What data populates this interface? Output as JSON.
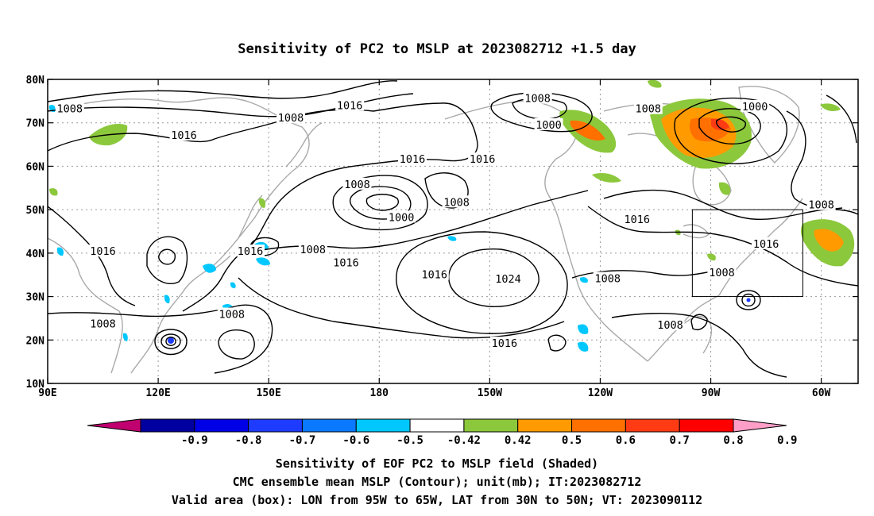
{
  "title": "Sensitivity of PC2 to MSLP at 2023082712 +1.5 day",
  "lon_ticks": [
    {
      "lon": 90,
      "label": "90E"
    },
    {
      "lon": 120,
      "label": "120E"
    },
    {
      "lon": 150,
      "label": "150E"
    },
    {
      "lon": 180,
      "label": "180"
    },
    {
      "lon": 210,
      "label": "150W"
    },
    {
      "lon": 240,
      "label": "120W"
    },
    {
      "lon": 270,
      "label": "90W"
    },
    {
      "lon": 300,
      "label": "60W"
    }
  ],
  "lat_ticks": [
    {
      "lat": 80,
      "label": "80N"
    },
    {
      "lat": 70,
      "label": "70N"
    },
    {
      "lat": 60,
      "label": "60N"
    },
    {
      "lat": 50,
      "label": "50N"
    },
    {
      "lat": 40,
      "label": "40N"
    },
    {
      "lat": 30,
      "label": "30N"
    },
    {
      "lat": 20,
      "label": "20N"
    },
    {
      "lat": 10,
      "label": "10N"
    }
  ],
  "map_extent": {
    "lon": [
      90,
      310
    ],
    "lat": [
      10,
      80
    ]
  },
  "valid_box": {
    "lon": [
      265,
      295
    ],
    "lat": [
      30,
      50
    ]
  },
  "contour_labels": [
    {
      "text": "1008",
      "lon": 96,
      "lat": 73.3
    },
    {
      "text": "1008",
      "lon": 156,
      "lat": 71.2
    },
    {
      "text": "1016",
      "lon": 127,
      "lat": 67.2
    },
    {
      "text": "1016",
      "lon": 172,
      "lat": 74.1
    },
    {
      "text": "1016",
      "lon": 189,
      "lat": 61.7
    },
    {
      "text": "1016",
      "lon": 208,
      "lat": 61.7
    },
    {
      "text": "1008",
      "lon": 223,
      "lat": 75.7
    },
    {
      "text": "1000",
      "lon": 226,
      "lat": 69.6
    },
    {
      "text": "1008",
      "lon": 253,
      "lat": 73.3
    },
    {
      "text": "1000",
      "lon": 282,
      "lat": 73.8
    },
    {
      "text": "1008",
      "lon": 174,
      "lat": 55.9
    },
    {
      "text": "1008",
      "lon": 201,
      "lat": 51.8
    },
    {
      "text": "1000",
      "lon": 186,
      "lat": 48.3
    },
    {
      "text": "1016",
      "lon": 105,
      "lat": 40.5
    },
    {
      "text": "1016",
      "lon": 145,
      "lat": 40.5
    },
    {
      "text": "1008",
      "lon": 162,
      "lat": 40.9
    },
    {
      "text": "1016",
      "lon": 171,
      "lat": 37.9
    },
    {
      "text": "1016",
      "lon": 250,
      "lat": 47.8
    },
    {
      "text": "1016",
      "lon": 285,
      "lat": 42.2
    },
    {
      "text": "1008",
      "lon": 300,
      "lat": 51.2
    },
    {
      "text": "1016",
      "lon": 195,
      "lat": 35.1
    },
    {
      "text": "1024",
      "lon": 215,
      "lat": 34.1
    },
    {
      "text": "1008",
      "lon": 242,
      "lat": 34.2
    },
    {
      "text": "1008",
      "lon": 273,
      "lat": 35.6
    },
    {
      "text": "1008",
      "lon": 140,
      "lat": 26.0
    },
    {
      "text": "1008",
      "lon": 105,
      "lat": 23.8
    },
    {
      "text": "1008",
      "lon": 259,
      "lat": 23.5
    },
    {
      "text": "1016",
      "lon": 214,
      "lat": 19.3
    }
  ],
  "colorbar": {
    "labels": [
      "-0.9",
      "-0.8",
      "-0.7",
      "-0.6",
      "-0.5",
      "-0.42",
      "0.42",
      "0.5",
      "0.6",
      "0.7",
      "0.8",
      "0.9"
    ],
    "colors": [
      "#c0006f",
      "#0000a0",
      "#0000e6",
      "#1e3cff",
      "#0a78ff",
      "#00c8ff",
      "#ffffff",
      "#8cc83c",
      "#ff9b00",
      "#ff7000",
      "#ff3b14",
      "#ff0000",
      "#ff9fc8"
    ]
  },
  "caption": {
    "line1": "Sensitivity of EOF PC2 to MSLP field (Shaded)",
    "line2": "CMC ensemble mean MSLP (Contour); unit(mb); IT:2023082712",
    "line3": "Valid area (box): LON from 95W to 65W, LAT from 30N to 50N; VT: 2023090112"
  }
}
